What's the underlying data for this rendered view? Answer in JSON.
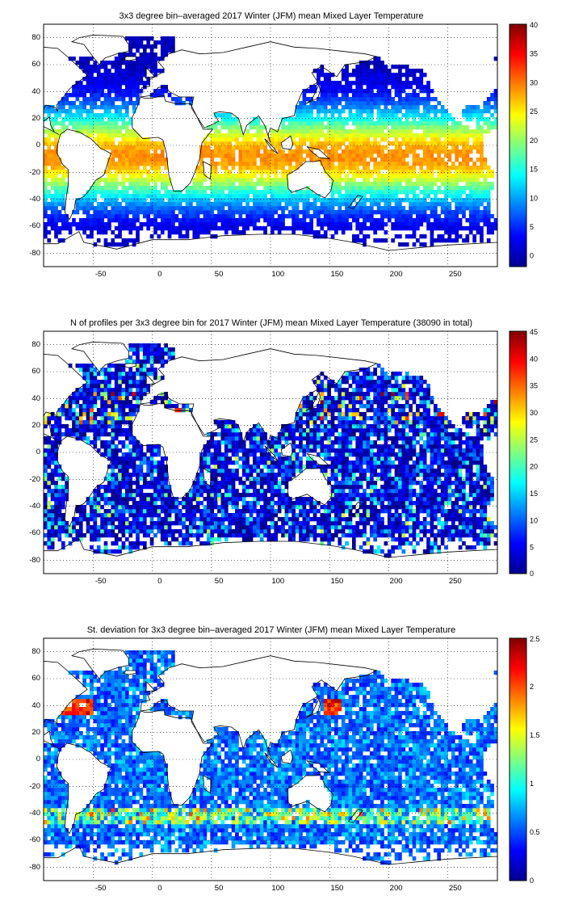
{
  "figure": {
    "panels": [
      {
        "id": "temperature",
        "title": "3x3 degree bin–averaged 2017 Winter (JFM) mean Mixed Layer Temperature",
        "colorbar_ticks": [
          "40",
          "35",
          "30",
          "25",
          "20",
          "15",
          "10",
          "5",
          "0"
        ]
      },
      {
        "id": "profiles",
        "title": "N of profiles per 3x3 degree bin for 2017 Winter (JFM) mean Mixed Layer Temperature  (38090 in total)",
        "colorbar_ticks": [
          "45",
          "40",
          "35",
          "30",
          "25",
          "20",
          "15",
          "10",
          "5",
          "0"
        ]
      },
      {
        "id": "stdev",
        "title": "St. deviation for 3x3 degree bin–averaged 2017 Winter (JFM) mean Mixed Layer Temperature",
        "colorbar_ticks": [
          "2.5",
          "2",
          "1.5",
          "1",
          "0.5",
          "0"
        ]
      }
    ],
    "x_tick_labels": [
      "-50",
      "0",
      "50",
      "100",
      "150",
      "200",
      "250"
    ],
    "y_tick_labels": [
      "80",
      "60",
      "40",
      "20",
      "0",
      "-20",
      "-40",
      "-60",
      "-80"
    ]
  },
  "chart_data": [
    {
      "type": "heatmap",
      "title": "3x3 degree bin–averaged 2017 Winter (JFM) mean Mixed Layer Temperature",
      "xlim": [
        -92,
        292
      ],
      "ylim": [
        -90,
        90
      ],
      "x_ticks": [
        -50,
        0,
        50,
        100,
        150,
        200,
        250
      ],
      "y_ticks": [
        -80,
        -60,
        -40,
        -20,
        0,
        20,
        40,
        60,
        80
      ],
      "bin_size_deg": 3,
      "color_range": [
        -2,
        40
      ],
      "colormap": "jet",
      "grid": true,
      "legend": "colorbar-right"
    },
    {
      "type": "heatmap",
      "title": "N of profiles per 3x3 degree bin for 2017 Winter (JFM) mean Mixed Layer Temperature  (38090 in total)",
      "total_profiles": 38090,
      "xlim": [
        -92,
        292
      ],
      "ylim": [
        -90,
        90
      ],
      "x_ticks": [
        -50,
        0,
        50,
        100,
        150,
        200,
        250
      ],
      "y_ticks": [
        -80,
        -60,
        -40,
        -20,
        0,
        20,
        40,
        60,
        80
      ],
      "bin_size_deg": 3,
      "color_range": [
        0,
        45
      ],
      "colormap": "jet",
      "grid": true,
      "legend": "colorbar-right"
    },
    {
      "type": "heatmap",
      "title": "St. deviation for 3x3 degree bin–averaged 2017 Winter (JFM) mean Mixed Layer Temperature",
      "xlim": [
        -92,
        292
      ],
      "ylim": [
        -90,
        90
      ],
      "x_ticks": [
        -50,
        0,
        50,
        100,
        150,
        200,
        250
      ],
      "y_ticks": [
        -80,
        -60,
        -40,
        -20,
        0,
        20,
        40,
        60,
        80
      ],
      "bin_size_deg": 3,
      "color_range": [
        0,
        2.5
      ],
      "colormap": "jet",
      "grid": true,
      "legend": "colorbar-right"
    }
  ]
}
